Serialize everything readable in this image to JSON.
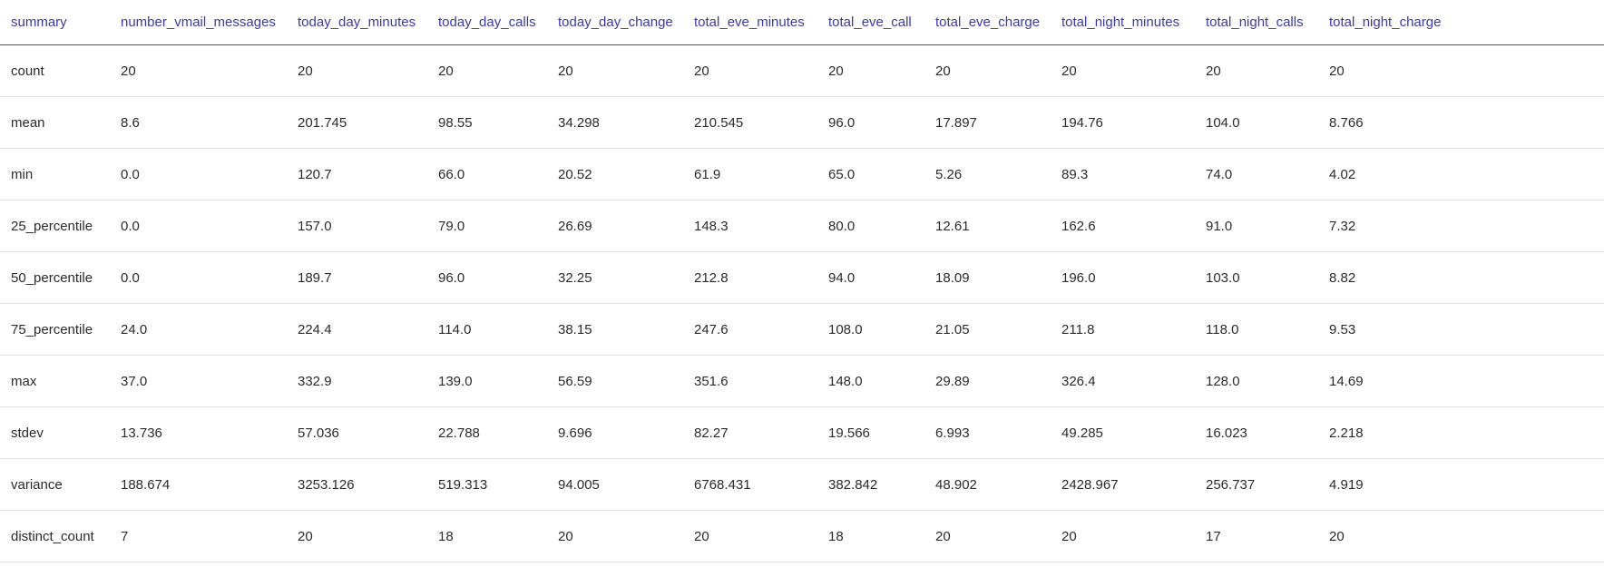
{
  "table": {
    "columns": [
      "summary",
      "number_vmail_messages",
      "today_day_minutes",
      "today_day_calls",
      "today_day_change",
      "total_eve_minutes",
      "total_eve_call",
      "total_eve_charge",
      "total_night_minutes",
      "total_night_calls",
      "total_night_charge"
    ],
    "rows": [
      [
        "count",
        "20",
        "20",
        "20",
        "20",
        "20",
        "20",
        "20",
        "20",
        "20",
        "20"
      ],
      [
        "mean",
        "8.6",
        "201.745",
        "98.55",
        "34.298",
        "210.545",
        "96.0",
        "17.897",
        "194.76",
        "104.0",
        "8.766"
      ],
      [
        "min",
        "0.0",
        "120.7",
        "66.0",
        "20.52",
        "61.9",
        "65.0",
        "5.26",
        "89.3",
        "74.0",
        "4.02"
      ],
      [
        "25_percentile",
        "0.0",
        "157.0",
        "79.0",
        "26.69",
        "148.3",
        "80.0",
        "12.61",
        "162.6",
        "91.0",
        "7.32"
      ],
      [
        "50_percentile",
        "0.0",
        "189.7",
        "96.0",
        "32.25",
        "212.8",
        "94.0",
        "18.09",
        "196.0",
        "103.0",
        "8.82"
      ],
      [
        "75_percentile",
        "24.0",
        "224.4",
        "114.0",
        "38.15",
        "247.6",
        "108.0",
        "21.05",
        "211.8",
        "118.0",
        "9.53"
      ],
      [
        "max",
        "37.0",
        "332.9",
        "139.0",
        "56.59",
        "351.6",
        "148.0",
        "29.89",
        "326.4",
        "128.0",
        "14.69"
      ],
      [
        "stdev",
        "13.736",
        "57.036",
        "22.788",
        "9.696",
        "82.27",
        "19.566",
        "6.993",
        "49.285",
        "16.023",
        "2.218"
      ],
      [
        "variance",
        "188.674",
        "3253.126",
        "519.313",
        "94.005",
        "6768.431",
        "382.842",
        "48.902",
        "2428.967",
        "256.737",
        "4.919"
      ],
      [
        "distinct_count",
        "7",
        "20",
        "18",
        "20",
        "20",
        "18",
        "20",
        "20",
        "17",
        "20"
      ]
    ]
  },
  "colors": {
    "header_text": "#3d3aa3",
    "header_rule": "#4c4aa6",
    "row_rule": "#e3e3e3",
    "cell_text": "#2b2b2b"
  }
}
